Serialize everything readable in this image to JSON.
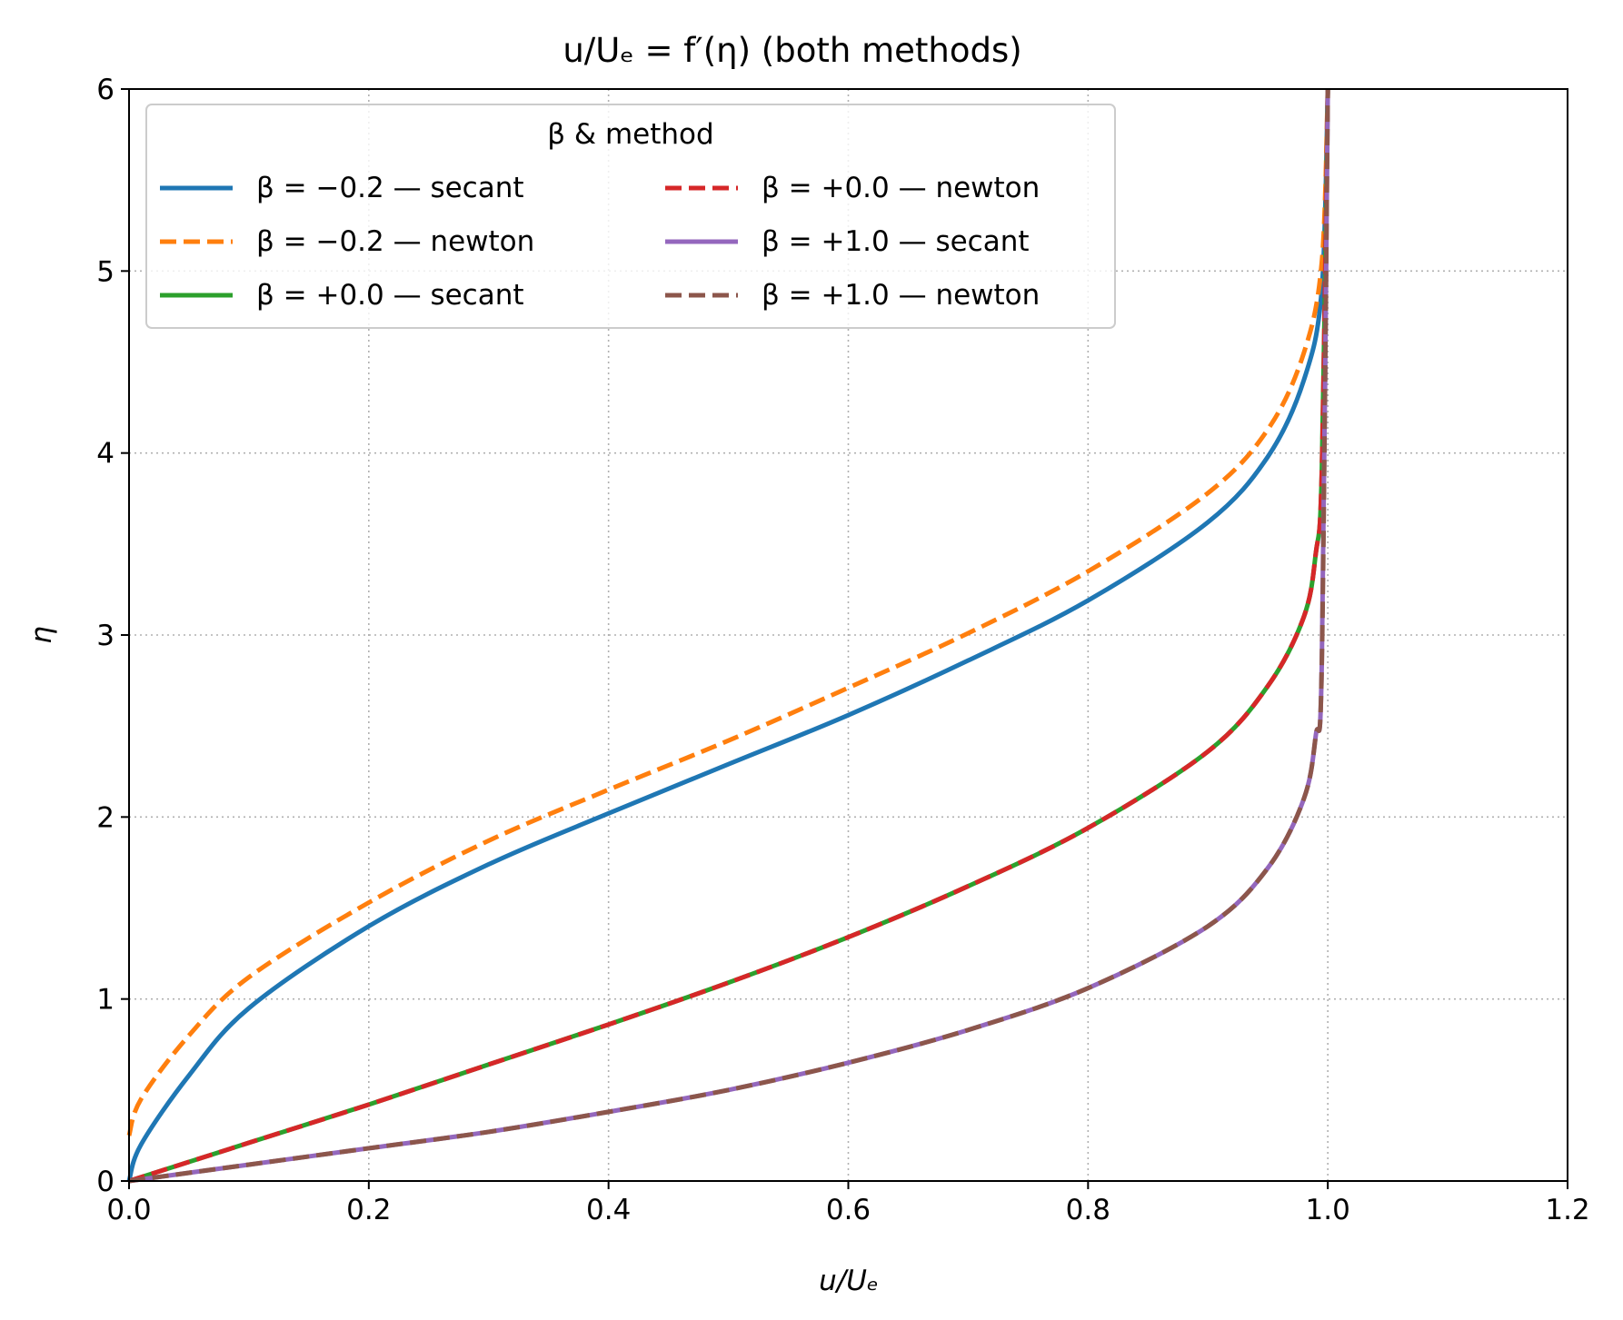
{
  "chart_data": {
    "type": "line",
    "title": "u/Uₑ = f′(η) (both methods)",
    "xlabel": "u/Uₑ",
    "ylabel": "η",
    "xlim": [
      0.0,
      1.2
    ],
    "ylim": [
      0,
      6
    ],
    "x_ticks": [
      "0.0",
      "0.2",
      "0.4",
      "0.6",
      "0.8",
      "1.0",
      "1.2"
    ],
    "y_ticks": [
      "0",
      "1",
      "2",
      "3",
      "4",
      "5",
      "6"
    ],
    "grid": true,
    "legend": {
      "title": "β & method",
      "placement": "upper-left",
      "columns": 2
    },
    "series": [
      {
        "name": "β = −0.2 — secant",
        "color": "#1f77b4",
        "dash": "solid",
        "x": [
          0.0,
          0.01,
          0.05,
          0.1,
          0.2,
          0.3,
          0.4,
          0.5,
          0.6,
          0.7,
          0.8,
          0.9,
          0.95,
          0.98,
          0.995,
          1.0
        ],
        "y": [
          0.0,
          0.2,
          0.58,
          0.95,
          1.4,
          1.74,
          2.02,
          2.29,
          2.56,
          2.86,
          3.19,
          3.62,
          3.98,
          4.4,
          4.9,
          6.0
        ]
      },
      {
        "name": "β = −0.2 — newton",
        "color": "#ff7f0e",
        "dash": "dashed",
        "x": [
          0.0,
          0.01,
          0.05,
          0.1,
          0.2,
          0.3,
          0.4,
          0.5,
          0.6,
          0.7,
          0.8,
          0.9,
          0.95,
          0.98,
          0.995,
          1.0
        ],
        "y": [
          0.25,
          0.45,
          0.8,
          1.12,
          1.53,
          1.87,
          2.15,
          2.42,
          2.71,
          3.01,
          3.35,
          3.78,
          4.13,
          4.55,
          5.05,
          6.0
        ]
      },
      {
        "name": "β = +0.0 — secant",
        "color": "#2ca02c",
        "dash": "solid",
        "x": [
          0.0,
          0.1,
          0.2,
          0.3,
          0.4,
          0.5,
          0.6,
          0.7,
          0.8,
          0.9,
          0.95,
          0.98,
          0.99,
          0.995,
          1.0
        ],
        "y": [
          0.0,
          0.21,
          0.42,
          0.64,
          0.86,
          1.09,
          1.34,
          1.62,
          1.94,
          2.36,
          2.72,
          3.1,
          3.45,
          3.9,
          6.0
        ]
      },
      {
        "name": "β = +0.0 — newton",
        "color": "#d62728",
        "dash": "dashed",
        "x": [
          0.0,
          0.1,
          0.2,
          0.3,
          0.4,
          0.5,
          0.6,
          0.7,
          0.8,
          0.9,
          0.95,
          0.98,
          0.99,
          0.995,
          1.0
        ],
        "y": [
          0.0,
          0.21,
          0.42,
          0.64,
          0.86,
          1.09,
          1.34,
          1.62,
          1.94,
          2.36,
          2.72,
          3.1,
          3.45,
          3.9,
          6.0
        ]
      },
      {
        "name": "β = +1.0 — secant",
        "color": "#9467bd",
        "dash": "solid",
        "x": [
          0.0,
          0.1,
          0.2,
          0.3,
          0.4,
          0.5,
          0.6,
          0.7,
          0.8,
          0.9,
          0.95,
          0.98,
          0.99,
          0.995,
          1.0
        ],
        "y": [
          0.0,
          0.09,
          0.18,
          0.27,
          0.38,
          0.5,
          0.65,
          0.83,
          1.06,
          1.4,
          1.72,
          2.1,
          2.45,
          2.85,
          6.0
        ]
      },
      {
        "name": "β = +1.0 — newton",
        "color": "#8c564b",
        "dash": "dashed",
        "x": [
          0.0,
          0.1,
          0.2,
          0.3,
          0.4,
          0.5,
          0.6,
          0.7,
          0.8,
          0.9,
          0.95,
          0.98,
          0.99,
          0.995,
          1.0
        ],
        "y": [
          0.0,
          0.09,
          0.18,
          0.27,
          0.38,
          0.5,
          0.65,
          0.83,
          1.06,
          1.4,
          1.72,
          2.1,
          2.45,
          2.85,
          6.0
        ]
      }
    ]
  }
}
